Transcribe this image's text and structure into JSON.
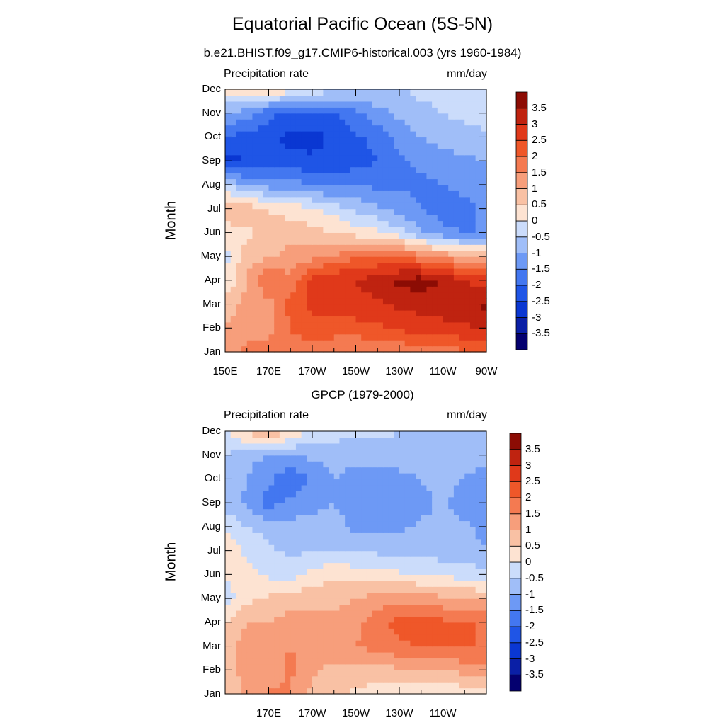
{
  "title": "Equatorial Pacific Ocean (5S-5N)",
  "colors": [
    "#04006f",
    "#0a1fa6",
    "#0a37d2",
    "#1f55e6",
    "#4377f0",
    "#6d99f5",
    "#a0bef8",
    "#cbdcfb",
    "#fde3d2",
    "#f9c1a4",
    "#f79e7b",
    "#f47a51",
    "#ef5729",
    "#e0391a",
    "#bf2310",
    "#8c0c04"
  ],
  "chart_data": [
    {
      "type": "heatmap",
      "title": "b.e21.BHIST.f09_g17.CMIP6-historical.003 (yrs 1960-1984)",
      "left_label": "Precipitation rate",
      "right_label": "mm/day",
      "ylabel": "Month",
      "xlabel": "",
      "months": [
        "Jan",
        "Feb",
        "Mar",
        "Apr",
        "May",
        "Jun",
        "Jul",
        "Aug",
        "Sep",
        "Oct",
        "Nov",
        "Dec"
      ],
      "lon_ticks": [
        "150E",
        "170E",
        "170W",
        "150W",
        "130W",
        "110W",
        "90W"
      ],
      "lon_values": [
        150,
        170,
        190,
        210,
        230,
        250,
        270
      ],
      "xlim": [
        150,
        270
      ],
      "lon": [
        150,
        160,
        170,
        180,
        190,
        200,
        210,
        220,
        230,
        240,
        250,
        260,
        270
      ],
      "clim": [
        -4,
        4
      ],
      "colorbar_labels": [
        "3.5",
        "3",
        "2.5",
        "2",
        "1.5",
        "1",
        "0.5",
        "0",
        "-0.5",
        "-1",
        "-1.5",
        "-2",
        "-2.5",
        "-3",
        "-3.5"
      ],
      "values": [
        [
          1.3,
          1.6,
          2.0,
          1.8,
          1.6,
          1.5,
          1.4,
          1.5,
          1.6,
          1.7,
          1.8,
          1.9,
          2.0
        ],
        [
          1.0,
          1.4,
          1.2,
          2.0,
          2.4,
          2.3,
          2.3,
          2.4,
          2.6,
          2.7,
          2.8,
          2.9,
          3.0
        ],
        [
          0.7,
          1.2,
          1.3,
          2.2,
          2.6,
          2.7,
          2.8,
          2.9,
          3.1,
          3.2,
          3.3,
          3.4,
          3.6
        ],
        [
          0.1,
          1.0,
          2.0,
          1.6,
          2.8,
          3.0,
          3.0,
          3.3,
          3.6,
          3.8,
          3.4,
          3.0,
          2.8
        ],
        [
          -0.2,
          0.8,
          0.9,
          1.2,
          1.3,
          1.6,
          1.9,
          2.0,
          2.0,
          1.7,
          1.4,
          1.1,
          1.0
        ],
        [
          0.1,
          0.4,
          0.6,
          0.8,
          0.7,
          0.5,
          0.3,
          0.1,
          -0.3,
          -0.9,
          -1.4,
          -1.5,
          -1.5
        ],
        [
          1.1,
          0.8,
          0.5,
          0.3,
          0.1,
          -0.2,
          -0.6,
          -0.9,
          -1.2,
          -1.5,
          -1.7,
          -1.6,
          -1.4
        ],
        [
          -0.5,
          -1.0,
          -1.2,
          -1.3,
          -1.5,
          -1.6,
          -1.6,
          -1.6,
          -1.6,
          -1.6,
          -1.5,
          -1.4,
          -1.3
        ],
        [
          -2.7,
          -2.5,
          -2.2,
          -2.3,
          -2.4,
          -2.4,
          -2.2,
          -2.0,
          -1.6,
          -1.4,
          -1.2,
          -1.1,
          -1.0
        ],
        [
          -2.0,
          -2.2,
          -2.3,
          -2.7,
          -2.7,
          -2.4,
          -2.1,
          -1.8,
          -1.3,
          -1.0,
          -0.8,
          -0.7,
          -0.6
        ],
        [
          -1.0,
          -1.3,
          -1.9,
          -2.0,
          -2.1,
          -2.0,
          -1.6,
          -1.2,
          -0.9,
          -0.6,
          -0.5,
          -0.4,
          -0.3
        ],
        [
          0.3,
          0.8,
          0.5,
          0.2,
          -0.2,
          -0.4,
          -0.5,
          -0.5,
          -0.5,
          -0.4,
          -0.4,
          -0.3,
          -0.2
        ]
      ]
    },
    {
      "type": "heatmap",
      "title": "GPCP (1979-2000)",
      "left_label": "Precipitation rate",
      "right_label": "mm/day",
      "ylabel": "Month",
      "xlabel": "",
      "months": [
        "Jan",
        "Feb",
        "Mar",
        "Apr",
        "May",
        "Jun",
        "Jul",
        "Aug",
        "Sep",
        "Oct",
        "Nov",
        "Dec"
      ],
      "lon_ticks": [
        "170E",
        "170W",
        "150W",
        "130W",
        "110W"
      ],
      "lon_values": [
        170,
        190,
        210,
        230,
        250
      ],
      "xlim": [
        150,
        270
      ],
      "lon": [
        150,
        160,
        170,
        180,
        190,
        200,
        210,
        220,
        230,
        240,
        250,
        260,
        270
      ],
      "clim": [
        -4,
        4
      ],
      "colorbar_labels": [
        "3.5",
        "3",
        "2.5",
        "2",
        "1.5",
        "1",
        "0.5",
        "0",
        "-0.5",
        "-1",
        "-1.5",
        "-2",
        "-2.5",
        "-3",
        "-3.5"
      ],
      "values": [
        [
          0.6,
          1.1,
          1.6,
          1.5,
          0.9,
          0.6,
          0.4,
          0.3,
          0.2,
          0.2,
          0.1,
          0.1,
          0.1
        ],
        [
          0.7,
          1.2,
          1.2,
          1.6,
          1.1,
          0.8,
          0.7,
          0.8,
          0.9,
          0.9,
          1.0,
          1.2,
          1.3
        ],
        [
          0.7,
          1.3,
          1.4,
          1.5,
          1.4,
          1.4,
          1.5,
          1.7,
          1.9,
          2.0,
          2.0,
          2.1,
          1.9
        ],
        [
          0.4,
          1.0,
          1.0,
          1.2,
          1.2,
          1.2,
          1.4,
          1.8,
          2.2,
          2.3,
          2.1,
          2.1,
          1.9
        ],
        [
          -0.3,
          0.4,
          0.6,
          0.8,
          0.8,
          0.8,
          1.0,
          1.2,
          1.3,
          1.3,
          1.1,
          1.0,
          0.9
        ],
        [
          0.1,
          0.2,
          -0.1,
          -0.3,
          0.2,
          0.4,
          0.3,
          0.2,
          0.1,
          0.0,
          -0.1,
          -0.2,
          -0.3
        ],
        [
          0.4,
          -0.1,
          -0.4,
          -0.6,
          -0.5,
          -0.5,
          -0.6,
          -0.6,
          -0.7,
          -0.7,
          -0.8,
          -0.9,
          -1.0
        ],
        [
          0.0,
          -0.5,
          -0.7,
          -0.8,
          -0.7,
          -0.8,
          -1.1,
          -1.2,
          -1.1,
          -0.9,
          -0.8,
          -0.9,
          -1.1
        ],
        [
          -0.8,
          -1.1,
          -1.7,
          -1.4,
          -1.2,
          -1.0,
          -1.3,
          -1.5,
          -1.4,
          -1.2,
          -0.9,
          -1.3,
          -1.5
        ],
        [
          -0.7,
          -1.0,
          -1.4,
          -1.9,
          -1.4,
          -1.0,
          -1.2,
          -1.4,
          -1.2,
          -1.0,
          -0.7,
          -1.1,
          -1.4
        ],
        [
          -0.5,
          -0.9,
          -1.0,
          -1.0,
          -0.9,
          -0.8,
          -0.8,
          -0.7,
          -0.7,
          -0.7,
          -0.6,
          -0.6,
          -0.6
        ],
        [
          0.0,
          0.6,
          1.0,
          0.4,
          -0.1,
          -0.3,
          -0.4,
          -0.4,
          -0.5,
          -0.5,
          -0.5,
          -0.5,
          -0.5
        ]
      ]
    }
  ]
}
